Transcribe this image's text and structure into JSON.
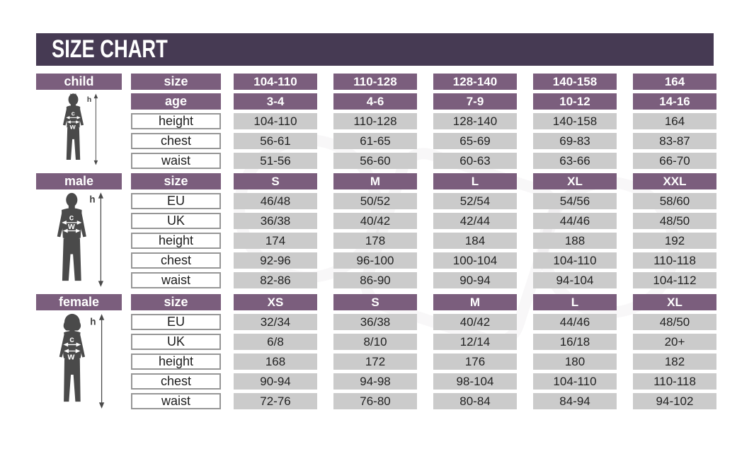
{
  "title": "SIZE CHART",
  "figure_labels": {
    "height_letter": "h",
    "chest_letter": "c",
    "waist_letter": "w"
  },
  "colors": {
    "banner": "#463a53",
    "header": "#7b5e7d",
    "cell_bg": "#cbcbcb",
    "silhouette": "#4a4a4a"
  },
  "sections": [
    {
      "id": "child",
      "label": "child",
      "figure": "child",
      "rows": [
        {
          "label": "size",
          "type": "header",
          "values": [
            "104-110",
            "110-128",
            "128-140",
            "140-158",
            "164"
          ]
        },
        {
          "label": "age",
          "type": "header",
          "values": [
            "3-4",
            "4-6",
            "7-9",
            "10-12",
            "14-16"
          ]
        },
        {
          "label": "height",
          "type": "data",
          "values": [
            "104-110",
            "110-128",
            "128-140",
            "140-158",
            "164"
          ]
        },
        {
          "label": "chest",
          "type": "data",
          "values": [
            "56-61",
            "61-65",
            "65-69",
            "69-83",
            "83-87"
          ]
        },
        {
          "label": "waist",
          "type": "data",
          "values": [
            "51-56",
            "56-60",
            "60-63",
            "63-66",
            "66-70"
          ]
        }
      ]
    },
    {
      "id": "male",
      "label": "male",
      "figure": "male",
      "rows": [
        {
          "label": "size",
          "type": "header",
          "values": [
            "S",
            "M",
            "L",
            "XL",
            "XXL"
          ]
        },
        {
          "label": "EU",
          "type": "data",
          "values": [
            "46/48",
            "50/52",
            "52/54",
            "54/56",
            "58/60"
          ]
        },
        {
          "label": "UK",
          "type": "data",
          "values": [
            "36/38",
            "40/42",
            "42/44",
            "44/46",
            "48/50"
          ]
        },
        {
          "label": "height",
          "type": "data",
          "values": [
            "174",
            "178",
            "184",
            "188",
            "192"
          ]
        },
        {
          "label": "chest",
          "type": "data",
          "values": [
            "92-96",
            "96-100",
            "100-104",
            "104-110",
            "110-118"
          ]
        },
        {
          "label": "waist",
          "type": "data",
          "values": [
            "82-86",
            "86-90",
            "90-94",
            "94-104",
            "104-112"
          ]
        }
      ]
    },
    {
      "id": "female",
      "label": "female",
      "figure": "female",
      "rows": [
        {
          "label": "size",
          "type": "header",
          "values": [
            "XS",
            "S",
            "M",
            "L",
            "XL"
          ]
        },
        {
          "label": "EU",
          "type": "data",
          "values": [
            "32/34",
            "36/38",
            "40/42",
            "44/46",
            "48/50"
          ]
        },
        {
          "label": "UK",
          "type": "data",
          "values": [
            "6/8",
            "8/10",
            "12/14",
            "16/18",
            "20+"
          ]
        },
        {
          "label": "height",
          "type": "data",
          "values": [
            "168",
            "172",
            "176",
            "180",
            "182"
          ]
        },
        {
          "label": "chest",
          "type": "data",
          "values": [
            "90-94",
            "94-98",
            "98-104",
            "104-110",
            "110-118"
          ]
        },
        {
          "label": "waist",
          "type": "data",
          "values": [
            "72-76",
            "76-80",
            "80-84",
            "84-94",
            "94-102"
          ]
        }
      ]
    }
  ],
  "chart_data": [
    {
      "type": "table",
      "title": "child",
      "columns": [
        "size",
        "104-110",
        "110-128",
        "128-140",
        "140-158",
        "164"
      ],
      "rows": [
        [
          "age",
          "3-4",
          "4-6",
          "7-9",
          "10-12",
          "14-16"
        ],
        [
          "height",
          "104-110",
          "110-128",
          "128-140",
          "140-158",
          "164"
        ],
        [
          "chest",
          "56-61",
          "61-65",
          "65-69",
          "69-83",
          "83-87"
        ],
        [
          "waist",
          "51-56",
          "56-60",
          "60-63",
          "63-66",
          "66-70"
        ]
      ]
    },
    {
      "type": "table",
      "title": "male",
      "columns": [
        "size",
        "S",
        "M",
        "L",
        "XL",
        "XXL"
      ],
      "rows": [
        [
          "EU",
          "46/48",
          "50/52",
          "52/54",
          "54/56",
          "58/60"
        ],
        [
          "UK",
          "36/38",
          "40/42",
          "42/44",
          "44/46",
          "48/50"
        ],
        [
          "height",
          "174",
          "178",
          "184",
          "188",
          "192"
        ],
        [
          "chest",
          "92-96",
          "96-100",
          "100-104",
          "104-110",
          "110-118"
        ],
        [
          "waist",
          "82-86",
          "86-90",
          "90-94",
          "94-104",
          "104-112"
        ]
      ]
    },
    {
      "type": "table",
      "title": "female",
      "columns": [
        "size",
        "XS",
        "S",
        "M",
        "L",
        "XL"
      ],
      "rows": [
        [
          "EU",
          "32/34",
          "36/38",
          "40/42",
          "44/46",
          "48/50"
        ],
        [
          "UK",
          "6/8",
          "8/10",
          "12/14",
          "16/18",
          "20+"
        ],
        [
          "height",
          "168",
          "172",
          "176",
          "180",
          "182"
        ],
        [
          "chest",
          "90-94",
          "94-98",
          "98-104",
          "104-110",
          "110-118"
        ],
        [
          "waist",
          "72-76",
          "76-80",
          "80-84",
          "84-94",
          "94-102"
        ]
      ]
    }
  ]
}
